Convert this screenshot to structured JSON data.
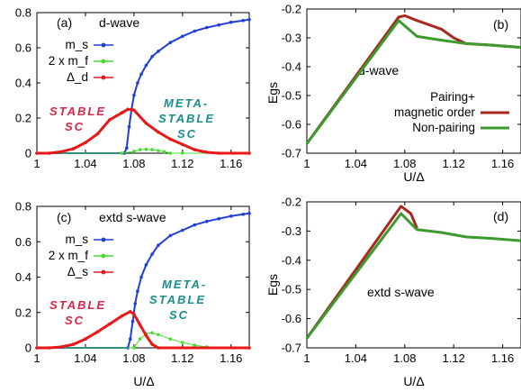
{
  "colors": {
    "ms": "#1f3fd6",
    "mf": "#44e02c",
    "delta": "#e81818",
    "pairing": "#a82820",
    "nonpairing": "#3c9a2e",
    "stable_text": "#d4264a",
    "meta_text": "#1a8c8c"
  },
  "chart_data": [
    {
      "type": "line",
      "panel": "(a)",
      "annotation": "d-wave",
      "xlabel": "",
      "ylabel": "",
      "xlim": [
        1.0,
        1.175
      ],
      "ylim": [
        0,
        0.8
      ],
      "xticks": [
        "1",
        "1.04",
        "1.08",
        "1.12",
        "1.16"
      ],
      "yticks": [
        "0",
        "0.2",
        "0.4",
        "0.6",
        "0.8"
      ],
      "legend_position": "top-left",
      "legend": [
        "m_s",
        "2 x m_f",
        "Δ_d"
      ],
      "text_annotations": [
        "STABLE",
        "SC",
        "META-",
        "STABLE",
        "SC"
      ],
      "series": [
        {
          "name": "m_s",
          "color_key": "ms",
          "x": [
            1.0,
            1.072,
            1.074,
            1.076,
            1.078,
            1.08,
            1.083,
            1.086,
            1.09,
            1.095,
            1.1,
            1.11,
            1.12,
            1.13,
            1.14,
            1.15,
            1.16,
            1.17,
            1.175
          ],
          "y": [
            0.0,
            0.0,
            0.03,
            0.15,
            0.25,
            0.33,
            0.4,
            0.45,
            0.5,
            0.55,
            0.58,
            0.63,
            0.665,
            0.695,
            0.715,
            0.73,
            0.745,
            0.755,
            0.76
          ]
        },
        {
          "name": "2 x m_f",
          "color_key": "mf",
          "x": [
            1.0,
            1.07,
            1.08,
            1.085,
            1.09,
            1.095,
            1.1,
            1.105,
            1.11,
            1.12,
            1.175
          ],
          "y": [
            0.0,
            0.0,
            0.01,
            0.02,
            0.022,
            0.02,
            0.015,
            0.008,
            0.0,
            0.0,
            0.0
          ]
        },
        {
          "name": "Δ_d",
          "color_key": "delta",
          "x": [
            1.0,
            1.01,
            1.02,
            1.03,
            1.04,
            1.05,
            1.06,
            1.07,
            1.075,
            1.08,
            1.09,
            1.1,
            1.11,
            1.12,
            1.13,
            1.14,
            1.15,
            1.175
          ],
          "y": [
            0.0,
            0.0,
            0.008,
            0.025,
            0.06,
            0.11,
            0.19,
            0.23,
            0.25,
            0.245,
            0.17,
            0.12,
            0.08,
            0.05,
            0.02,
            0.005,
            0.0,
            0.0
          ]
        }
      ]
    },
    {
      "type": "line",
      "panel": "(b)",
      "annotation": "d-wave",
      "xlabel": "U/Δ",
      "ylabel": "Egs",
      "xlim": [
        1.0,
        1.175
      ],
      "ylim": [
        -0.7,
        -0.2
      ],
      "xticks": [
        "1",
        "1.04",
        "1.08",
        "1.12",
        "1.16"
      ],
      "yticks": [
        "-0.2",
        "-0.3",
        "-0.4",
        "-0.5",
        "-0.6",
        "-0.7"
      ],
      "legend_position": "right",
      "legend": [
        "Pairing+",
        "magnetic order",
        "Non-pairing"
      ],
      "series": [
        {
          "name": "Pairing+ magnetic order",
          "color_key": "pairing",
          "x": [
            1.0,
            1.075,
            1.08,
            1.09,
            1.1,
            1.11,
            1.12,
            1.13,
            1.15,
            1.175
          ],
          "y": [
            -0.667,
            -0.228,
            -0.223,
            -0.24,
            -0.255,
            -0.27,
            -0.3,
            -0.32,
            -0.325,
            -0.333
          ]
        },
        {
          "name": "Non-pairing",
          "color_key": "nonpairing",
          "x": [
            1.0,
            1.075,
            1.09,
            1.11,
            1.13,
            1.15,
            1.175
          ],
          "y": [
            -0.667,
            -0.24,
            -0.295,
            -0.308,
            -0.32,
            -0.325,
            -0.333
          ]
        }
      ]
    },
    {
      "type": "line",
      "panel": "(c)",
      "annotation": "extd s-wave",
      "xlabel": "U/Δ",
      "ylabel": "",
      "xlim": [
        1.0,
        1.175
      ],
      "ylim": [
        0,
        0.8
      ],
      "xticks": [
        "1",
        "1.04",
        "1.08",
        "1.12",
        "1.16"
      ],
      "yticks": [
        "0",
        "0.2",
        "0.4",
        "0.6",
        "0.8"
      ],
      "legend_position": "top-left",
      "legend": [
        "m_s",
        "2 x m_f",
        "Δ_s"
      ],
      "text_annotations": [
        "STABLE",
        "SC",
        "META-",
        "STABLE",
        "SC"
      ],
      "series": [
        {
          "name": "m_s",
          "color_key": "ms",
          "x": [
            1.0,
            1.075,
            1.077,
            1.079,
            1.081,
            1.083,
            1.086,
            1.09,
            1.095,
            1.1,
            1.11,
            1.12,
            1.13,
            1.14,
            1.15,
            1.16,
            1.17,
            1.175
          ],
          "y": [
            0.0,
            0.0,
            0.05,
            0.15,
            0.25,
            0.32,
            0.4,
            0.47,
            0.53,
            0.58,
            0.635,
            0.665,
            0.695,
            0.715,
            0.73,
            0.745,
            0.755,
            0.76
          ]
        },
        {
          "name": "2 x m_f",
          "color_key": "mf",
          "x": [
            1.0,
            1.08,
            1.085,
            1.09,
            1.095,
            1.1,
            1.11,
            1.12,
            1.13,
            1.14,
            1.175
          ],
          "y": [
            0.0,
            0.0,
            0.05,
            0.08,
            0.085,
            0.075,
            0.05,
            0.03,
            0.015,
            0.005,
            0.0
          ]
        },
        {
          "name": "Δ_s",
          "color_key": "delta",
          "x": [
            1.0,
            1.01,
            1.02,
            1.03,
            1.04,
            1.05,
            1.06,
            1.07,
            1.077,
            1.08,
            1.085,
            1.09,
            1.095,
            1.1,
            1.175
          ],
          "y": [
            0.0,
            0.0,
            0.005,
            0.02,
            0.05,
            0.09,
            0.135,
            0.18,
            0.205,
            0.19,
            0.13,
            0.07,
            0.02,
            0.0,
            0.0
          ]
        }
      ]
    },
    {
      "type": "line",
      "panel": "(d)",
      "annotation": "extd s-wave",
      "xlabel": "U/Δ",
      "ylabel": "Egs",
      "xlim": [
        1.0,
        1.175
      ],
      "ylim": [
        -0.7,
        -0.2
      ],
      "xticks": [
        "1",
        "1.04",
        "1.08",
        "1.12",
        "1.16"
      ],
      "yticks": [
        "-0.2",
        "-0.3",
        "-0.4",
        "-0.5",
        "-0.6",
        "-0.7"
      ],
      "series": [
        {
          "name": "Pairing+ magnetic order",
          "color_key": "pairing",
          "x": [
            1.0,
            1.077,
            1.085,
            1.09
          ],
          "y": [
            -0.667,
            -0.215,
            -0.24,
            -0.29
          ]
        },
        {
          "name": "Non-pairing",
          "color_key": "nonpairing",
          "x": [
            1.0,
            1.077,
            1.09,
            1.11,
            1.13,
            1.15,
            1.175
          ],
          "y": [
            -0.667,
            -0.24,
            -0.295,
            -0.305,
            -0.32,
            -0.325,
            -0.333
          ]
        }
      ]
    }
  ]
}
